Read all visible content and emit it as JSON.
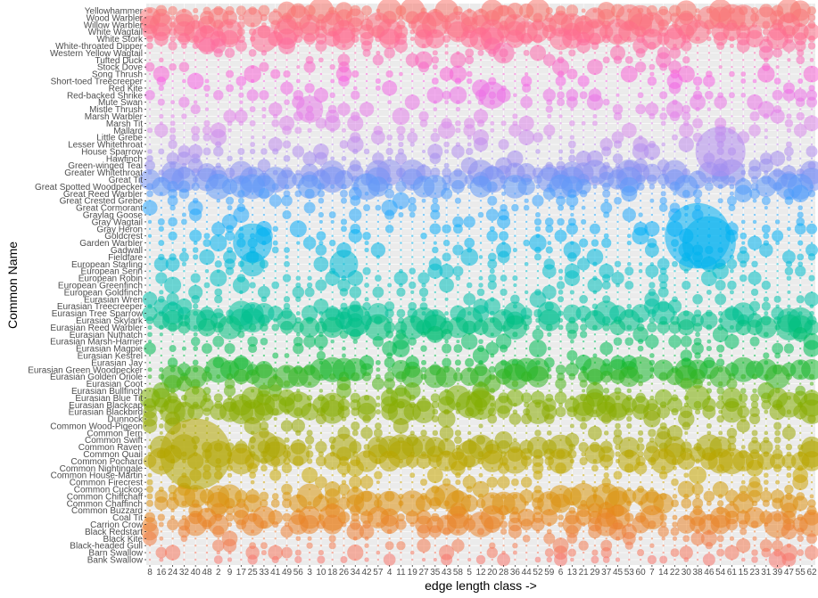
{
  "chart_data": {
    "type": "scatter",
    "title": "",
    "xlabel": "edge length class ->",
    "ylabel": "Common Name",
    "grid": true,
    "legend": "none",
    "panel_background": "#ebebeb",
    "point_alpha": 0.55,
    "x_tick_labels": [
      "8",
      "16",
      "24",
      "32",
      "40",
      "48",
      "2",
      "9",
      "17",
      "25",
      "33",
      "41",
      "49",
      "56",
      "3",
      "10",
      "18",
      "26",
      "34",
      "42",
      "57",
      "4",
      "11",
      "19",
      "27",
      "35",
      "43",
      "58",
      "5",
      "12",
      "20",
      "28",
      "36",
      "44",
      "52",
      "59",
      "6",
      "13",
      "21",
      "29",
      "37",
      "45",
      "53",
      "60",
      "7",
      "14",
      "22",
      "30",
      "38",
      "46",
      "54",
      "61",
      "15",
      "23",
      "31",
      "39",
      "47",
      "55",
      "62"
    ],
    "categories": [
      "Yellowhammer",
      "Wood Warbler",
      "Willow Warbler",
      "White Wagtail",
      "White Stork",
      "White-throated Dipper",
      "Western Yellow Wagtail",
      "Tufted Duck",
      "Stock Dove",
      "Song Thrush",
      "Short-toed Treecreeper",
      "Red Kite",
      "Red-backed Shrike",
      "Mute Swan",
      "Mistle Thrush",
      "Marsh Warbler",
      "Marsh Tit",
      "Mallard",
      "Little Grebe",
      "Lesser Whitethroat",
      "House Sparrow",
      "Hawfinch",
      "Green-winged Teal",
      "Greater Whitethroat",
      "Great Tit",
      "Great Spotted Woodpecker",
      "Great Reed Warbler",
      "Great Crested Grebe",
      "Great Cormorant",
      "Graylag Goose",
      "Gray Wagtail",
      "Gray Heron",
      "Goldcrest",
      "Garden Warbler",
      "Gadwall",
      "Fieldfare",
      "European Starling",
      "European Serin",
      "European Robin",
      "European Greenfinch",
      "European Goldfinch",
      "Eurasian Wren",
      "Eurasian Treecreeper",
      "Eurasian Tree Sparrow",
      "Eurasian Skylark",
      "Eurasian Reed Warbler",
      "Eurasian Nuthatch",
      "Eurasian Marsh-Harrier",
      "Eurasian Magpie",
      "Eurasian Kestrel",
      "Eurasian Jay",
      "Eurasian Green Woodpecker",
      "Eurasian Golden Oriole",
      "Eurasian Coot",
      "Eurasian Bullfinch",
      "Eurasian Blue Tit",
      "Eurasian Blackcap",
      "Eurasian Blackbird",
      "Dunnock",
      "Common Wood-Pigeon",
      "Common Tern",
      "Common Swift",
      "Common Raven",
      "Common Quail",
      "Common Pochard",
      "Common Nightingale",
      "Common House-Martin",
      "Common Firecrest",
      "Common Cuckoo",
      "Common Chiffchaff",
      "Common Chaffinch",
      "Common Buzzard",
      "Coal Tit",
      "Carrion Crow",
      "Black Redstart",
      "Black Kite",
      "Black-headed Gull",
      "Barn Swallow",
      "Bank Swallow"
    ],
    "hue_stops": [
      {
        "row": 0,
        "color": "#F8766D"
      },
      {
        "row": 4,
        "color": "#FF6C91"
      },
      {
        "row": 10,
        "color": "#F564E3"
      },
      {
        "row": 17,
        "color": "#D98CEB"
      },
      {
        "row": 23,
        "color": "#8C8FF0"
      },
      {
        "row": 27,
        "color": "#35A2FF"
      },
      {
        "row": 32,
        "color": "#00B0F6"
      },
      {
        "row": 38,
        "color": "#00BFC4"
      },
      {
        "row": 43,
        "color": "#00C19A"
      },
      {
        "row": 50,
        "color": "#00BA38"
      },
      {
        "row": 55,
        "color": "#7CAE00"
      },
      {
        "row": 61,
        "color": "#A3A500"
      },
      {
        "row": 66,
        "color": "#C8A700"
      },
      {
        "row": 72,
        "color": "#E7861B"
      },
      {
        "row": 78,
        "color": "#F8766D"
      }
    ],
    "highlights": [
      {
        "name": "Common Quail",
        "x": "40",
        "size": 1.0
      },
      {
        "name": "Goldcrest",
        "x": "38",
        "size": 0.92
      },
      {
        "name": "Garden Warbler",
        "x": "46",
        "size": 0.75
      },
      {
        "name": "House Sparrow",
        "x": "54",
        "size": 0.7
      },
      {
        "name": "European Starling",
        "x": "25",
        "size": 0.35
      },
      {
        "name": "Garden Warbler",
        "x": "25",
        "size": 0.55
      },
      {
        "name": "European Starling",
        "x": "26",
        "size": 0.4
      },
      {
        "name": "Mistle Thrush",
        "x": "3",
        "size": 0.38
      },
      {
        "name": "Red-backed Shrike",
        "x": "20",
        "size": 0.38
      },
      {
        "name": "Western Yellow Wagtail",
        "x": "28",
        "size": 0.3
      },
      {
        "name": "Common Raven",
        "x": "33",
        "size": 0.45
      },
      {
        "name": "Eurasian Blackcap",
        "x": "12",
        "size": 0.42
      },
      {
        "name": "Eurasian Skylark",
        "x": "34",
        "size": 0.45
      }
    ]
  }
}
